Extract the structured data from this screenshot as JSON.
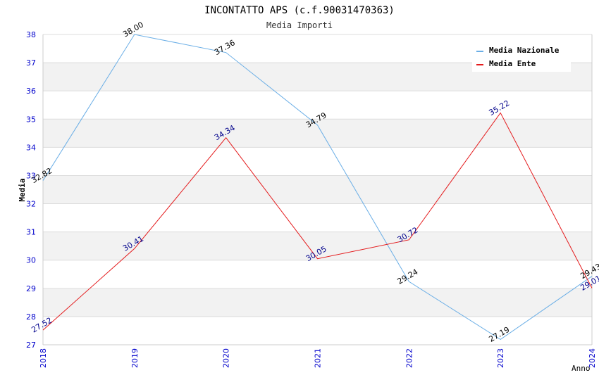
{
  "chart_data": {
    "type": "line",
    "title": "INCONTATTO APS (c.f.90031470363)",
    "subtitle": "Media Importi",
    "xlabel": "Anno",
    "ylabel": "Media",
    "x": [
      "2018",
      "2019",
      "2020",
      "2021",
      "2022",
      "2023",
      "2024"
    ],
    "ylim": [
      27,
      38
    ],
    "yticks": [
      27,
      28,
      29,
      30,
      31,
      32,
      33,
      34,
      35,
      36,
      37,
      38
    ],
    "grid": "horizontal alternating bands",
    "legend_position": "top-right",
    "series": [
      {
        "name": "Media Nazionale",
        "color": "#6aaee6",
        "label_color": "#000000",
        "values": [
          32.82,
          38.0,
          37.36,
          34.79,
          29.24,
          27.19,
          29.43
        ],
        "labels": [
          "32.82",
          "38.00",
          "37.36",
          "34.79",
          "29.24",
          "27.19",
          "29.43"
        ]
      },
      {
        "name": "Media Ente",
        "color": "#e41a1c",
        "label_color": "#00008b",
        "values": [
          27.52,
          30.41,
          34.34,
          30.05,
          30.72,
          35.22,
          29.01
        ],
        "labels": [
          "27.52",
          "30.41",
          "34.34",
          "30.05",
          "30.72",
          "35.22",
          "29.01"
        ]
      }
    ]
  }
}
